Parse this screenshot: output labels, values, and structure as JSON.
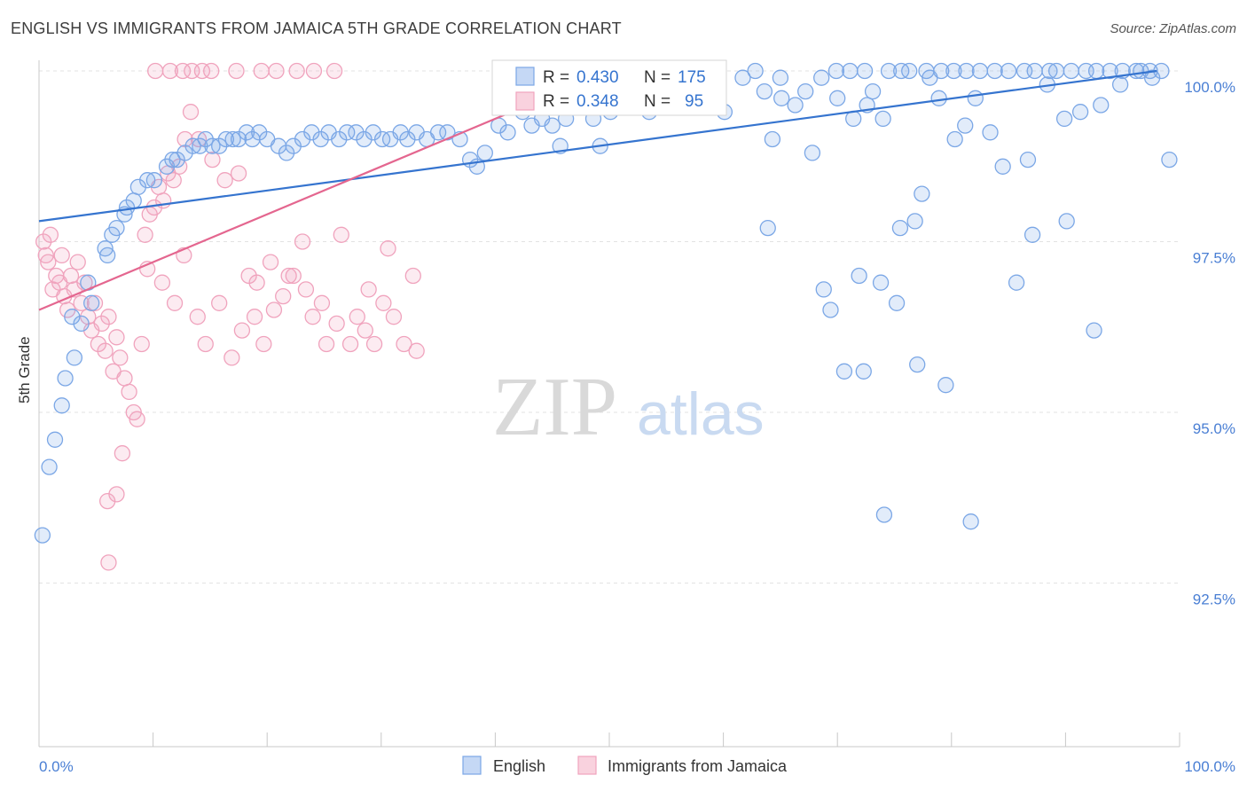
{
  "title": "ENGLISH VS IMMIGRANTS FROM JAMAICA 5TH GRADE CORRELATION CHART",
  "source": "Source: ZipAtlas.com",
  "watermark": {
    "zip": "ZIP",
    "atlas": "atlas"
  },
  "colors": {
    "blue": "#7ba7e6",
    "blue_line": "#3574cf",
    "pink": "#f0a3bd",
    "pink_line": "#e4668f",
    "tick": "#4a7fd4"
  },
  "legend": {
    "r_label": "R =",
    "n_label": "N =",
    "items": [
      {
        "r": "0.430",
        "n": "175"
      },
      {
        "r": "0.348",
        "n": "95"
      }
    ]
  },
  "bottom_legend": [
    "English",
    "Immigrants from Jamaica"
  ],
  "chart_data": {
    "type": "scatter",
    "title": "ENGLISH VS IMMIGRANTS FROM JAMAICA 5TH GRADE CORRELATION CHART",
    "xlabel": "",
    "ylabel": "5th Grade",
    "xlim": [
      0,
      100
    ],
    "ylim": [
      90.0,
      100.5
    ],
    "x_tick_labels": [
      "0.0%",
      "100.0%"
    ],
    "y_ticks": [
      92.5,
      95.0,
      97.5,
      100.0
    ],
    "y_tick_labels": [
      "92.5%",
      "95.0%",
      "97.5%",
      "100.0%"
    ],
    "grid": "horizontal dashed",
    "legend_position": "top-center",
    "series": [
      {
        "name": "English",
        "trend": {
          "x0": 0,
          "y0": 97.8,
          "x1": 98,
          "y1": 100.0
        },
        "points": [
          [
            0.3,
            93.2
          ],
          [
            0.9,
            94.2
          ],
          [
            1.4,
            94.6
          ],
          [
            2.0,
            95.1
          ],
          [
            2.3,
            95.5
          ],
          [
            3.1,
            95.8
          ],
          [
            3.7,
            96.3
          ],
          [
            2.9,
            96.4
          ],
          [
            4.6,
            96.6
          ],
          [
            4.3,
            96.9
          ],
          [
            6.0,
            97.3
          ],
          [
            5.8,
            97.4
          ],
          [
            6.4,
            97.6
          ],
          [
            6.8,
            97.7
          ],
          [
            7.5,
            97.9
          ],
          [
            7.7,
            98.0
          ],
          [
            8.3,
            98.1
          ],
          [
            8.7,
            98.3
          ],
          [
            9.5,
            98.4
          ],
          [
            10.1,
            98.4
          ],
          [
            11.2,
            98.6
          ],
          [
            11.7,
            98.7
          ],
          [
            12.1,
            98.7
          ],
          [
            12.8,
            98.8
          ],
          [
            13.5,
            98.9
          ],
          [
            14.1,
            98.9
          ],
          [
            14.6,
            99.0
          ],
          [
            15.2,
            98.9
          ],
          [
            15.8,
            98.9
          ],
          [
            16.4,
            99.0
          ],
          [
            17.0,
            99.0
          ],
          [
            17.5,
            99.0
          ],
          [
            18.2,
            99.1
          ],
          [
            18.7,
            99.0
          ],
          [
            19.3,
            99.1
          ],
          [
            20.0,
            99.0
          ],
          [
            21.0,
            98.9
          ],
          [
            21.7,
            98.8
          ],
          [
            22.3,
            98.9
          ],
          [
            23.1,
            99.0
          ],
          [
            23.9,
            99.1
          ],
          [
            24.7,
            99.0
          ],
          [
            25.4,
            99.1
          ],
          [
            26.3,
            99.0
          ],
          [
            27.0,
            99.1
          ],
          [
            27.8,
            99.1
          ],
          [
            28.5,
            99.0
          ],
          [
            29.3,
            99.1
          ],
          [
            30.1,
            99.0
          ],
          [
            30.8,
            99.0
          ],
          [
            31.7,
            99.1
          ],
          [
            32.3,
            99.0
          ],
          [
            33.1,
            99.1
          ],
          [
            34.0,
            99.0
          ],
          [
            35.0,
            99.1
          ],
          [
            35.8,
            99.1
          ],
          [
            36.9,
            99.0
          ],
          [
            37.8,
            98.7
          ],
          [
            38.4,
            98.6
          ],
          [
            39.1,
            98.8
          ],
          [
            40.3,
            99.2
          ],
          [
            41.1,
            99.1
          ],
          [
            42.4,
            99.4
          ],
          [
            43.2,
            99.2
          ],
          [
            44.1,
            99.3
          ],
          [
            45.0,
            99.2
          ],
          [
            45.7,
            98.9
          ],
          [
            46.2,
            99.3
          ],
          [
            47.0,
            99.5
          ],
          [
            47.6,
            99.5
          ],
          [
            48.6,
            99.3
          ],
          [
            49.2,
            98.9
          ],
          [
            50.1,
            99.4
          ],
          [
            51.3,
            99.6
          ],
          [
            52.3,
            99.6
          ],
          [
            53.5,
            99.4
          ],
          [
            54.2,
            99.6
          ],
          [
            55.1,
            99.7
          ],
          [
            56.6,
            99.6
          ],
          [
            57.2,
            99.6
          ],
          [
            58.5,
            99.7
          ],
          [
            59.4,
            99.5
          ],
          [
            60.1,
            99.4
          ],
          [
            61.7,
            99.9
          ],
          [
            62.8,
            100.0
          ],
          [
            63.6,
            99.7
          ],
          [
            65.0,
            99.9
          ],
          [
            66.3,
            99.5
          ],
          [
            67.2,
            99.7
          ],
          [
            68.6,
            99.9
          ],
          [
            69.9,
            100.0
          ],
          [
            71.1,
            100.0
          ],
          [
            72.4,
            100.0
          ],
          [
            73.1,
            99.7
          ],
          [
            74.5,
            100.0
          ],
          [
            75.6,
            100.0
          ],
          [
            76.3,
            100.0
          ],
          [
            77.8,
            100.0
          ],
          [
            79.1,
            100.0
          ],
          [
            80.2,
            100.0
          ],
          [
            81.3,
            100.0
          ],
          [
            82.5,
            100.0
          ],
          [
            83.8,
            100.0
          ],
          [
            85.0,
            100.0
          ],
          [
            86.4,
            100.0
          ],
          [
            87.3,
            100.0
          ],
          [
            88.6,
            100.0
          ],
          [
            89.2,
            100.0
          ],
          [
            90.5,
            100.0
          ],
          [
            91.8,
            100.0
          ],
          [
            92.7,
            100.0
          ],
          [
            93.9,
            100.0
          ],
          [
            95.0,
            100.0
          ],
          [
            96.2,
            100.0
          ],
          [
            97.4,
            100.0
          ],
          [
            98.4,
            100.0
          ],
          [
            99.1,
            98.7
          ],
          [
            63.9,
            97.7
          ],
          [
            64.3,
            99.0
          ],
          [
            65.1,
            99.6
          ],
          [
            67.8,
            98.8
          ],
          [
            70.0,
            99.6
          ],
          [
            71.4,
            99.3
          ],
          [
            72.6,
            99.5
          ],
          [
            74.0,
            99.3
          ],
          [
            75.5,
            97.7
          ],
          [
            78.1,
            99.9
          ],
          [
            80.3,
            99.0
          ],
          [
            82.1,
            99.6
          ],
          [
            83.4,
            99.1
          ],
          [
            84.5,
            98.6
          ],
          [
            86.7,
            98.7
          ],
          [
            88.4,
            99.8
          ],
          [
            89.9,
            99.3
          ],
          [
            91.3,
            99.4
          ],
          [
            93.1,
            99.5
          ],
          [
            94.8,
            99.8
          ],
          [
            96.6,
            100.0
          ],
          [
            97.6,
            99.9
          ],
          [
            76.8,
            97.8
          ],
          [
            77.4,
            98.2
          ],
          [
            78.9,
            99.6
          ],
          [
            81.2,
            99.2
          ],
          [
            85.7,
            96.9
          ],
          [
            87.1,
            97.6
          ],
          [
            90.1,
            97.8
          ],
          [
            92.5,
            96.2
          ],
          [
            69.4,
            96.5
          ],
          [
            71.9,
            97.0
          ],
          [
            73.8,
            96.9
          ],
          [
            75.2,
            96.6
          ],
          [
            77.0,
            95.7
          ],
          [
            79.5,
            95.4
          ],
          [
            81.7,
            93.4
          ],
          [
            74.1,
            93.5
          ],
          [
            68.8,
            96.8
          ],
          [
            70.6,
            95.6
          ],
          [
            72.3,
            95.6
          ]
        ]
      },
      {
        "name": "Immigrants from Jamaica",
        "trend": {
          "x0": 0,
          "y0": 96.5,
          "x1": 50,
          "y1": 100.0
        },
        "points": [
          [
            0.4,
            97.5
          ],
          [
            0.6,
            97.3
          ],
          [
            0.8,
            97.2
          ],
          [
            1.0,
            97.6
          ],
          [
            1.2,
            96.8
          ],
          [
            1.5,
            97.0
          ],
          [
            1.8,
            96.9
          ],
          [
            2.0,
            97.3
          ],
          [
            2.2,
            96.7
          ],
          [
            2.5,
            96.5
          ],
          [
            2.8,
            97.0
          ],
          [
            3.1,
            96.8
          ],
          [
            3.4,
            97.2
          ],
          [
            3.7,
            96.6
          ],
          [
            4.0,
            96.9
          ],
          [
            4.3,
            96.4
          ],
          [
            4.6,
            96.2
          ],
          [
            4.9,
            96.6
          ],
          [
            5.2,
            96.0
          ],
          [
            5.5,
            96.3
          ],
          [
            5.8,
            95.9
          ],
          [
            6.1,
            96.4
          ],
          [
            6.5,
            95.6
          ],
          [
            6.8,
            96.1
          ],
          [
            7.1,
            95.8
          ],
          [
            7.5,
            95.5
          ],
          [
            7.9,
            95.3
          ],
          [
            8.3,
            95.0
          ],
          [
            8.6,
            94.9
          ],
          [
            9.0,
            96.0
          ],
          [
            9.3,
            97.6
          ],
          [
            9.7,
            97.9
          ],
          [
            10.1,
            98.0
          ],
          [
            10.5,
            98.3
          ],
          [
            10.9,
            98.1
          ],
          [
            11.3,
            98.5
          ],
          [
            11.8,
            98.4
          ],
          [
            12.3,
            98.6
          ],
          [
            12.8,
            99.0
          ],
          [
            13.3,
            99.4
          ],
          [
            14.0,
            99.0
          ],
          [
            15.2,
            98.7
          ],
          [
            16.3,
            98.4
          ],
          [
            17.5,
            98.5
          ],
          [
            18.4,
            97.0
          ],
          [
            18.9,
            96.4
          ],
          [
            19.7,
            96.0
          ],
          [
            20.6,
            96.5
          ],
          [
            21.4,
            96.7
          ],
          [
            22.3,
            97.0
          ],
          [
            23.1,
            97.5
          ],
          [
            24.0,
            96.4
          ],
          [
            25.2,
            96.0
          ],
          [
            26.5,
            97.6
          ],
          [
            27.9,
            96.4
          ],
          [
            28.6,
            96.2
          ],
          [
            29.4,
            96.0
          ],
          [
            30.2,
            96.6
          ],
          [
            31.1,
            96.4
          ],
          [
            32.0,
            96.0
          ],
          [
            33.1,
            95.9
          ],
          [
            6.0,
            93.7
          ],
          [
            6.8,
            93.8
          ],
          [
            7.3,
            94.4
          ],
          [
            9.5,
            97.1
          ],
          [
            10.8,
            96.9
          ],
          [
            11.9,
            96.6
          ],
          [
            12.7,
            97.3
          ],
          [
            13.9,
            96.4
          ],
          [
            14.6,
            96.0
          ],
          [
            15.8,
            96.6
          ],
          [
            16.9,
            95.8
          ],
          [
            17.8,
            96.2
          ],
          [
            19.1,
            96.9
          ],
          [
            20.3,
            97.2
          ],
          [
            21.9,
            97.0
          ],
          [
            23.4,
            96.8
          ],
          [
            24.8,
            96.6
          ],
          [
            26.1,
            96.3
          ],
          [
            27.3,
            96.0
          ],
          [
            28.9,
            96.8
          ],
          [
            30.6,
            97.4
          ],
          [
            32.8,
            97.0
          ],
          [
            10.2,
            100.0
          ],
          [
            11.5,
            100.0
          ],
          [
            12.6,
            100.0
          ],
          [
            13.4,
            100.0
          ],
          [
            14.3,
            100.0
          ],
          [
            15.1,
            100.0
          ],
          [
            17.3,
            100.0
          ],
          [
            19.5,
            100.0
          ],
          [
            20.8,
            100.0
          ],
          [
            22.6,
            100.0
          ],
          [
            24.1,
            100.0
          ],
          [
            25.9,
            100.0
          ],
          [
            6.1,
            92.8
          ]
        ]
      }
    ]
  }
}
